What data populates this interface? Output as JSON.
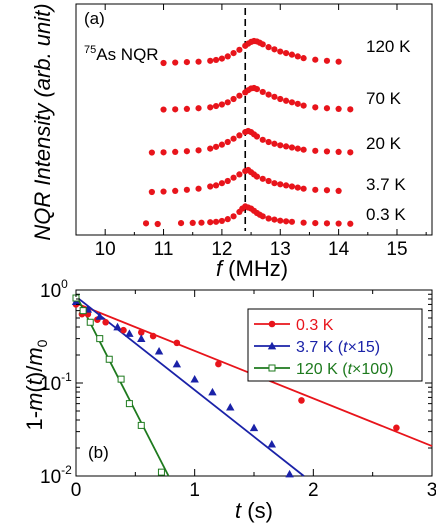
{
  "chart_data": [
    {
      "type": "scatter",
      "panel_label": "(a)",
      "annotation": "As NQR",
      "annotation_superscript": "75",
      "xlabel_italic": "f",
      "xlabel_unit": " (MHz)",
      "ylabel": "NQR Intensity (arb. unit)",
      "xlim": [
        9.5,
        15.6
      ],
      "xticks": [
        "10",
        "11",
        "12",
        "13",
        "14",
        "15"
      ],
      "xtick_values": [
        10,
        11,
        12,
        13,
        14,
        15
      ],
      "dashed_line_x": 12.4,
      "marker_color": "#e8141b",
      "series": [
        {
          "name": "0.3 K",
          "x": [
            10.7,
            10.9,
            11.3,
            11.5,
            11.65,
            11.8,
            11.9,
            12.0,
            12.1,
            12.2,
            12.3,
            12.35,
            12.4,
            12.45,
            12.5,
            12.55,
            12.6,
            12.65,
            12.7,
            12.8,
            12.9,
            13.0,
            13.1,
            13.2,
            13.4,
            13.6,
            13.8,
            14.0,
            14.2
          ],
          "y": [
            0.03,
            0.0,
            0.04,
            0.05,
            0.06,
            0.08,
            0.1,
            0.14,
            0.22,
            0.35,
            0.55,
            0.7,
            0.8,
            0.75,
            0.7,
            0.6,
            0.5,
            0.42,
            0.35,
            0.25,
            0.2,
            0.15,
            0.12,
            0.1,
            0.06,
            0.04,
            0.03,
            0.02,
            0.01
          ]
        },
        {
          "name": "3.7 K",
          "x": [
            10.8,
            11.0,
            11.2,
            11.4,
            11.6,
            11.8,
            11.9,
            12.0,
            12.1,
            12.2,
            12.3,
            12.4,
            12.45,
            12.5,
            12.55,
            12.6,
            12.7,
            12.8,
            12.9,
            13.0,
            13.1,
            13.2,
            13.3,
            13.4,
            13.6,
            13.8,
            14.0
          ],
          "y": [
            0.0,
            0.02,
            0.05,
            0.1,
            0.15,
            0.25,
            0.3,
            0.4,
            0.5,
            0.65,
            0.8,
            0.95,
            1.0,
            0.9,
            0.8,
            0.7,
            0.6,
            0.5,
            0.4,
            0.35,
            0.3,
            0.25,
            0.2,
            0.15,
            0.1,
            0.08,
            0.05
          ]
        },
        {
          "name": "20 K",
          "x": [
            10.8,
            11.0,
            11.2,
            11.4,
            11.6,
            11.8,
            11.9,
            12.0,
            12.1,
            12.2,
            12.3,
            12.4,
            12.45,
            12.5,
            12.55,
            12.6,
            12.7,
            12.8,
            12.9,
            13.0,
            13.1,
            13.2,
            13.3,
            13.4,
            13.6,
            13.8,
            14.0,
            14.2
          ],
          "y": [
            0.02,
            0.03,
            0.05,
            0.08,
            0.12,
            0.2,
            0.28,
            0.38,
            0.5,
            0.65,
            0.8,
            0.95,
            1.0,
            0.95,
            0.85,
            0.75,
            0.6,
            0.5,
            0.42,
            0.35,
            0.3,
            0.25,
            0.2,
            0.15,
            0.1,
            0.07,
            0.05,
            0.03
          ]
        },
        {
          "name": "70 K",
          "x": [
            11.0,
            11.2,
            11.4,
            11.6,
            11.8,
            11.9,
            12.0,
            12.1,
            12.2,
            12.3,
            12.4,
            12.45,
            12.5,
            12.55,
            12.6,
            12.7,
            12.8,
            12.9,
            13.0,
            13.1,
            13.2,
            13.3,
            13.4,
            13.6,
            13.8,
            14.0,
            14.2
          ],
          "y": [
            0.02,
            0.03,
            0.05,
            0.08,
            0.12,
            0.18,
            0.25,
            0.35,
            0.5,
            0.65,
            0.8,
            0.9,
            0.98,
            1.0,
            0.95,
            0.82,
            0.7,
            0.6,
            0.5,
            0.42,
            0.35,
            0.28,
            0.2,
            0.12,
            0.08,
            0.05,
            0.03
          ]
        },
        {
          "name": "120 K",
          "x": [
            11.0,
            11.2,
            11.4,
            11.6,
            11.8,
            11.9,
            12.0,
            12.1,
            12.2,
            12.3,
            12.4,
            12.45,
            12.5,
            12.55,
            12.6,
            12.65,
            12.7,
            12.8,
            12.9,
            13.0,
            13.1,
            13.2,
            13.3,
            13.4,
            13.6,
            13.8,
            14.0
          ],
          "y": [
            0.0,
            0.02,
            0.04,
            0.06,
            0.1,
            0.14,
            0.2,
            0.3,
            0.45,
            0.6,
            0.78,
            0.88,
            0.96,
            1.0,
            0.98,
            0.92,
            0.85,
            0.72,
            0.62,
            0.52,
            0.45,
            0.38,
            0.3,
            0.22,
            0.15,
            0.1,
            0.06
          ]
        }
      ],
      "series_labels": [
        "0.3 K",
        "3.7 K",
        "20 K",
        "70 K",
        "120 K"
      ]
    },
    {
      "type": "scatter",
      "panel_label": "(b)",
      "ylabel_parts": [
        "1-",
        "m",
        "(",
        "t",
        ")/",
        "m",
        "0"
      ],
      "xlabel_italic": "t",
      "xlabel_unit": " (s)",
      "xlim": [
        0,
        3
      ],
      "ylim": [
        0.01,
        1
      ],
      "yscale": "log",
      "xticks": [
        "0",
        "1",
        "2",
        "3"
      ],
      "xtick_values": [
        0,
        1,
        2,
        3
      ],
      "yticks": [
        "10",
        "10",
        "10"
      ],
      "ytick_exponents": [
        "-2",
        "-1",
        "0"
      ],
      "ytick_values": [
        0.01,
        0.1,
        1
      ],
      "legend_position": "top-right",
      "series": [
        {
          "name": "0.3 K",
          "legend_prefix": "0.3 K",
          "color": "#e8141b",
          "marker": "circle",
          "x": [
            0.0,
            0.05,
            0.1,
            0.18,
            0.25,
            0.4,
            0.55,
            0.65,
            0.85,
            1.2,
            1.9,
            2.7
          ],
          "y": [
            0.7,
            0.55,
            0.55,
            0.48,
            0.45,
            0.37,
            0.35,
            0.32,
            0.27,
            0.16,
            0.065,
            0.033
          ],
          "fit": {
            "x": [
              0,
              3
            ],
            "y": [
              0.72,
              0.021
            ]
          }
        },
        {
          "name": "3.7 K (t×15)",
          "legend_prefix": "3.7 K (",
          "legend_italic": "t",
          "legend_suffix": "×15)",
          "color": "#1a22a8",
          "marker": "triangle",
          "x": [
            0.0,
            0.1,
            0.2,
            0.35,
            0.45,
            0.55,
            0.7,
            0.85,
            1.0,
            1.15,
            1.3,
            1.5,
            1.65,
            1.8
          ],
          "y": [
            0.75,
            0.62,
            0.52,
            0.4,
            0.34,
            0.3,
            0.22,
            0.16,
            0.11,
            0.08,
            0.055,
            0.033,
            0.022,
            0.0105
          ],
          "fit": {
            "x": [
              0,
              1.92
            ],
            "y": [
              0.85,
              0.01
            ]
          }
        },
        {
          "name": "120 K (t×100)",
          "legend_prefix": "120 K (",
          "legend_italic": "t",
          "legend_suffix": "×100)",
          "color": "#1e7a1e",
          "marker": "square-open",
          "x": [
            0.0,
            0.06,
            0.12,
            0.2,
            0.28,
            0.38,
            0.45,
            0.55,
            0.72
          ],
          "y": [
            0.82,
            0.6,
            0.45,
            0.3,
            0.18,
            0.11,
            0.06,
            0.035,
            0.011
          ],
          "fit": {
            "x": [
              0,
              0.78
            ],
            "y": [
              0.88,
              0.01
            ]
          }
        }
      ]
    }
  ]
}
